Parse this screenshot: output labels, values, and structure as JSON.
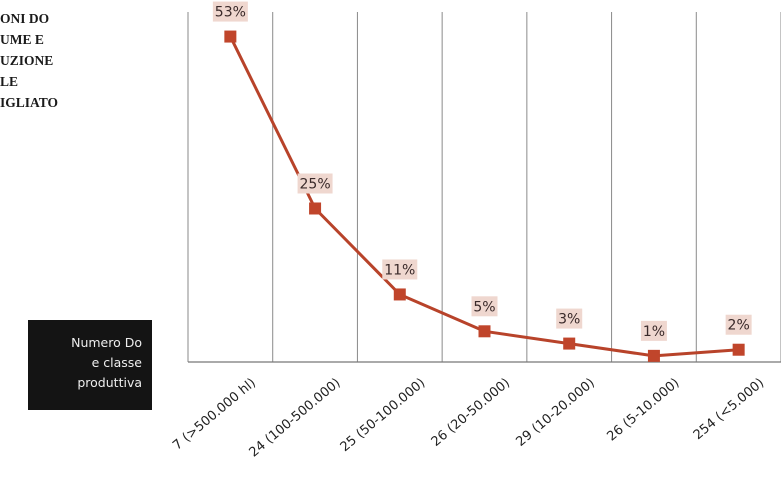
{
  "side_title": {
    "lines": [
      "ONI DO",
      "UME E",
      "UZIONE",
      "LE",
      "IGLIATO"
    ]
  },
  "legend": {
    "lines": [
      "Numero Do",
      "e classe",
      "produttiva"
    ]
  },
  "chart_data": {
    "type": "line",
    "title": "",
    "xlabel": "Numero Do e classe produttiva",
    "ylabel": "",
    "categories": [
      "7 (>500.000 hl)",
      "24 (100-500.000)",
      "25 (50-100.000)",
      "26 (20-50.000)",
      "29 (10-20.000)",
      "26 (5-10.000)",
      "254 (<5.000)"
    ],
    "series": [
      {
        "values": [
          53,
          25,
          11,
          5,
          3,
          1,
          2
        ]
      }
    ],
    "data_labels": [
      "53%",
      "25%",
      "11%",
      "5%",
      "3%",
      "1%",
      "2%"
    ],
    "ylim": [
      0,
      57
    ],
    "grid": "vertical",
    "colors": {
      "line": "#b8432a",
      "marker": "#c0452b",
      "label_bg": "#efd7cf",
      "grid": "#8a8a8a"
    }
  }
}
